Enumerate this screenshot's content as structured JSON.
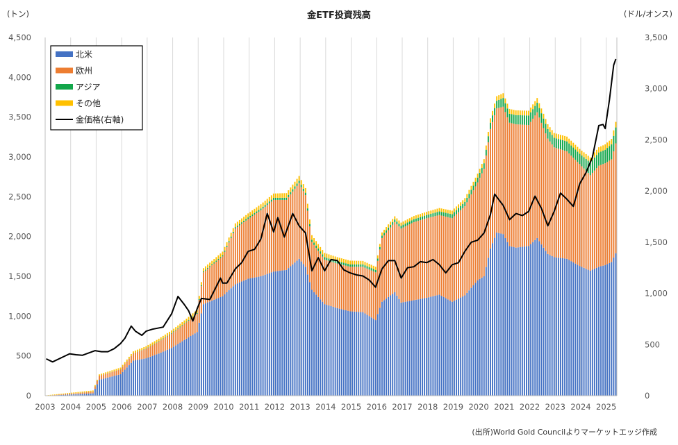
{
  "chart_data": {
    "type": "bar",
    "stacked": true,
    "title": "金ETF投資残高",
    "ylabel_left": "(トン)",
    "ylabel_right": "(ドル/オンス)",
    "source": "(出所)World Gold Councilよりマーケットエッジ作成",
    "ylim_left": [
      0,
      4500
    ],
    "ylim_right": [
      0,
      3500
    ],
    "yticks_left": [
      "0",
      "500",
      "1,000",
      "1,500",
      "2,000",
      "2,500",
      "3,000",
      "3,500",
      "4,000",
      "4,500"
    ],
    "yticks_right": [
      "0",
      "500",
      "1,000",
      "1,500",
      "2,000",
      "2,500",
      "3,000",
      "3,500"
    ],
    "xticks": [
      "2003",
      "2004",
      "2005",
      "2006",
      "2007",
      "2008",
      "2009",
      "2010",
      "2011",
      "2012",
      "2013",
      "2014",
      "2015",
      "2016",
      "2017",
      "2018",
      "2019",
      "2020",
      "2021",
      "2022",
      "2023",
      "2024",
      "2025"
    ],
    "x_range": [
      "2003-01",
      "2025-05"
    ],
    "grid": "vertical",
    "legend_position": "top-left",
    "legend": [
      {
        "label": "北米",
        "color": "#4472C4",
        "kind": "bar"
      },
      {
        "label": "欧州",
        "color": "#ED7D31",
        "kind": "bar"
      },
      {
        "label": "アジア",
        "color": "#12A64A",
        "kind": "bar"
      },
      {
        "label": "その他",
        "color": "#FFC000",
        "kind": "bar"
      },
      {
        "label": "金価格(右軸)",
        "color": "#000000",
        "kind": "line"
      }
    ],
    "series": [
      {
        "name": "北米",
        "axis": "left",
        "color": "#4472C4",
        "points": [
          [
            "2003-01",
            0
          ],
          [
            "2004-11",
            30
          ],
          [
            "2005-02",
            200
          ],
          [
            "2005-12",
            270
          ],
          [
            "2006-06",
            440
          ],
          [
            "2006-12",
            470
          ],
          [
            "2007-06",
            530
          ],
          [
            "2007-12",
            600
          ],
          [
            "2008-06",
            700
          ],
          [
            "2008-12",
            800
          ],
          [
            "2009-03",
            1150
          ],
          [
            "2009-12",
            1250
          ],
          [
            "2010-06",
            1400
          ],
          [
            "2010-12",
            1470
          ],
          [
            "2011-06",
            1500
          ],
          [
            "2011-12",
            1560
          ],
          [
            "2012-06",
            1580
          ],
          [
            "2012-12",
            1720
          ],
          [
            "2013-03",
            1620
          ],
          [
            "2013-06",
            1330
          ],
          [
            "2013-12",
            1150
          ],
          [
            "2014-06",
            1100
          ],
          [
            "2014-12",
            1060
          ],
          [
            "2015-06",
            1050
          ],
          [
            "2015-12",
            950
          ],
          [
            "2016-03",
            1180
          ],
          [
            "2016-09",
            1300
          ],
          [
            "2016-12",
            1170
          ],
          [
            "2017-06",
            1200
          ],
          [
            "2017-12",
            1230
          ],
          [
            "2018-06",
            1270
          ],
          [
            "2018-12",
            1180
          ],
          [
            "2019-06",
            1260
          ],
          [
            "2019-12",
            1450
          ],
          [
            "2020-03",
            1500
          ],
          [
            "2020-06",
            1850
          ],
          [
            "2020-09",
            2050
          ],
          [
            "2020-12",
            2030
          ],
          [
            "2021-03",
            1880
          ],
          [
            "2021-06",
            1860
          ],
          [
            "2021-12",
            1880
          ],
          [
            "2022-04",
            1980
          ],
          [
            "2022-09",
            1780
          ],
          [
            "2022-12",
            1740
          ],
          [
            "2023-06",
            1720
          ],
          [
            "2023-12",
            1630
          ],
          [
            "2024-05",
            1570
          ],
          [
            "2024-09",
            1620
          ],
          [
            "2024-12",
            1640
          ],
          [
            "2025-03",
            1680
          ],
          [
            "2025-05",
            1790
          ]
        ]
      },
      {
        "name": "欧州",
        "axis": "left",
        "color": "#ED7D31",
        "points": [
          [
            "2003-01",
            0
          ],
          [
            "2004-11",
            20
          ],
          [
            "2005-02",
            50
          ],
          [
            "2005-12",
            60
          ],
          [
            "2006-06",
            90
          ],
          [
            "2006-12",
            120
          ],
          [
            "2007-06",
            150
          ],
          [
            "2007-12",
            180
          ],
          [
            "2008-06",
            200
          ],
          [
            "2008-12",
            230
          ],
          [
            "2009-03",
            400
          ],
          [
            "2009-12",
            500
          ],
          [
            "2010-06",
            700
          ],
          [
            "2010-12",
            750
          ],
          [
            "2011-06",
            830
          ],
          [
            "2011-12",
            900
          ],
          [
            "2012-06",
            880
          ],
          [
            "2012-12",
            950
          ],
          [
            "2013-03",
            900
          ],
          [
            "2013-06",
            600
          ],
          [
            "2013-12",
            560
          ],
          [
            "2014-06",
            560
          ],
          [
            "2014-12",
            560
          ],
          [
            "2015-06",
            570
          ],
          [
            "2015-12",
            600
          ],
          [
            "2016-03",
            800
          ],
          [
            "2016-09",
            880
          ],
          [
            "2016-12",
            930
          ],
          [
            "2017-06",
            980
          ],
          [
            "2017-12",
            1000
          ],
          [
            "2018-06",
            1000
          ],
          [
            "2018-12",
            1050
          ],
          [
            "2019-06",
            1120
          ],
          [
            "2019-12",
            1230
          ],
          [
            "2020-03",
            1350
          ],
          [
            "2020-06",
            1500
          ],
          [
            "2020-09",
            1560
          ],
          [
            "2020-12",
            1600
          ],
          [
            "2021-03",
            1550
          ],
          [
            "2021-06",
            1550
          ],
          [
            "2021-12",
            1520
          ],
          [
            "2022-04",
            1580
          ],
          [
            "2022-09",
            1450
          ],
          [
            "2022-12",
            1380
          ],
          [
            "2023-06",
            1350
          ],
          [
            "2023-12",
            1280
          ],
          [
            "2024-05",
            1200
          ],
          [
            "2024-09",
            1270
          ],
          [
            "2024-12",
            1280
          ],
          [
            "2025-03",
            1290
          ],
          [
            "2025-05",
            1380
          ]
        ]
      },
      {
        "name": "アジア",
        "axis": "left",
        "color": "#12A64A",
        "points": [
          [
            "2003-01",
            0
          ],
          [
            "2006-06",
            2
          ],
          [
            "2008-12",
            10
          ],
          [
            "2010-12",
            20
          ],
          [
            "2012-12",
            30
          ],
          [
            "2015-12",
            30
          ],
          [
            "2017-12",
            40
          ],
          [
            "2019-12",
            60
          ],
          [
            "2020-06",
            80
          ],
          [
            "2020-12",
            110
          ],
          [
            "2021-12",
            120
          ],
          [
            "2022-12",
            120
          ],
          [
            "2023-12",
            130
          ],
          [
            "2024-05",
            160
          ],
          [
            "2024-12",
            170
          ],
          [
            "2025-05",
            200
          ]
        ]
      },
      {
        "name": "その他",
        "axis": "left",
        "color": "#FFC000",
        "points": [
          [
            "2003-01",
            5
          ],
          [
            "2004-11",
            15
          ],
          [
            "2006-06",
            25
          ],
          [
            "2008-12",
            40
          ],
          [
            "2010-12",
            50
          ],
          [
            "2012-12",
            60
          ],
          [
            "2015-12",
            40
          ],
          [
            "2017-12",
            40
          ],
          [
            "2019-12",
            50
          ],
          [
            "2020-12",
            60
          ],
          [
            "2022-12",
            60
          ],
          [
            "2023-12",
            60
          ],
          [
            "2025-05",
            70
          ]
        ]
      },
      {
        "name": "金価格(右軸)",
        "axis": "right",
        "kind": "line",
        "color": "#000000",
        "points": [
          [
            "2003-01",
            360
          ],
          [
            "2003-04",
            330
          ],
          [
            "2003-09",
            380
          ],
          [
            "2003-12",
            410
          ],
          [
            "2004-03",
            400
          ],
          [
            "2004-06",
            395
          ],
          [
            "2004-12",
            440
          ],
          [
            "2005-03",
            430
          ],
          [
            "2005-06",
            430
          ],
          [
            "2005-09",
            460
          ],
          [
            "2005-12",
            510
          ],
          [
            "2006-02",
            560
          ],
          [
            "2006-05",
            680
          ],
          [
            "2006-07",
            630
          ],
          [
            "2006-10",
            590
          ],
          [
            "2006-12",
            630
          ],
          [
            "2007-03",
            650
          ],
          [
            "2007-08",
            670
          ],
          [
            "2007-12",
            800
          ],
          [
            "2008-03",
            970
          ],
          [
            "2008-06",
            890
          ],
          [
            "2008-08",
            830
          ],
          [
            "2008-10",
            730
          ],
          [
            "2008-12",
            850
          ],
          [
            "2009-02",
            950
          ],
          [
            "2009-06",
            940
          ],
          [
            "2009-11",
            1150
          ],
          [
            "2009-12",
            1100
          ],
          [
            "2010-02",
            1100
          ],
          [
            "2010-06",
            1240
          ],
          [
            "2010-09",
            1300
          ],
          [
            "2010-12",
            1410
          ],
          [
            "2011-03",
            1430
          ],
          [
            "2011-06",
            1530
          ],
          [
            "2011-09",
            1780
          ],
          [
            "2011-12",
            1600
          ],
          [
            "2012-02",
            1740
          ],
          [
            "2012-05",
            1550
          ],
          [
            "2012-09",
            1780
          ],
          [
            "2012-12",
            1660
          ],
          [
            "2013-03",
            1590
          ],
          [
            "2013-06",
            1220
          ],
          [
            "2013-09",
            1350
          ],
          [
            "2013-12",
            1220
          ],
          [
            "2014-03",
            1330
          ],
          [
            "2014-06",
            1320
          ],
          [
            "2014-09",
            1230
          ],
          [
            "2014-12",
            1200
          ],
          [
            "2015-03",
            1180
          ],
          [
            "2015-06",
            1170
          ],
          [
            "2015-09",
            1130
          ],
          [
            "2015-12",
            1060
          ],
          [
            "2016-03",
            1240
          ],
          [
            "2016-06",
            1320
          ],
          [
            "2016-09",
            1320
          ],
          [
            "2016-12",
            1150
          ],
          [
            "2017-03",
            1250
          ],
          [
            "2017-06",
            1260
          ],
          [
            "2017-09",
            1310
          ],
          [
            "2017-12",
            1300
          ],
          [
            "2018-03",
            1330
          ],
          [
            "2018-06",
            1280
          ],
          [
            "2018-09",
            1200
          ],
          [
            "2018-12",
            1280
          ],
          [
            "2019-03",
            1300
          ],
          [
            "2019-06",
            1410
          ],
          [
            "2019-09",
            1500
          ],
          [
            "2019-12",
            1520
          ],
          [
            "2020-03",
            1590
          ],
          [
            "2020-06",
            1770
          ],
          [
            "2020-08",
            1970
          ],
          [
            "2020-12",
            1860
          ],
          [
            "2021-03",
            1720
          ],
          [
            "2021-06",
            1780
          ],
          [
            "2021-09",
            1760
          ],
          [
            "2021-12",
            1800
          ],
          [
            "2022-03",
            1950
          ],
          [
            "2022-06",
            1830
          ],
          [
            "2022-09",
            1660
          ],
          [
            "2022-12",
            1800
          ],
          [
            "2023-03",
            1980
          ],
          [
            "2023-06",
            1920
          ],
          [
            "2023-09",
            1850
          ],
          [
            "2023-12",
            2070
          ],
          [
            "2024-03",
            2180
          ],
          [
            "2024-06",
            2330
          ],
          [
            "2024-09",
            2640
          ],
          [
            "2024-11",
            2650
          ],
          [
            "2024-12",
            2610
          ],
          [
            "2025-02",
            2890
          ],
          [
            "2025-04",
            3230
          ],
          [
            "2025-05",
            3290
          ]
        ]
      }
    ]
  }
}
